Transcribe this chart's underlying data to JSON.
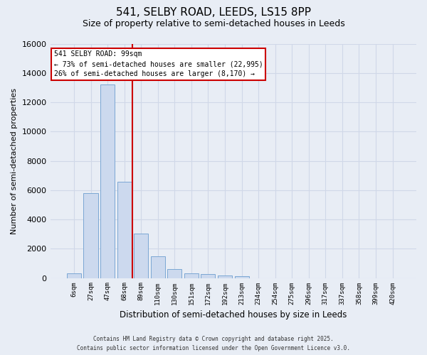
{
  "title_line1": "541, SELBY ROAD, LEEDS, LS15 8PP",
  "title_line2": "Size of property relative to semi-detached houses in Leeds",
  "xlabel": "Distribution of semi-detached houses by size in Leeds",
  "ylabel": "Number of semi-detached properties",
  "categories": [
    "6sqm",
    "27sqm",
    "47sqm",
    "68sqm",
    "89sqm",
    "110sqm",
    "130sqm",
    "151sqm",
    "172sqm",
    "192sqm",
    "213sqm",
    "234sqm",
    "254sqm",
    "275sqm",
    "296sqm",
    "317sqm",
    "337sqm",
    "358sqm",
    "399sqm",
    "420sqm"
  ],
  "values": [
    300,
    5800,
    13200,
    6550,
    3050,
    1500,
    600,
    320,
    270,
    150,
    120,
    0,
    0,
    0,
    0,
    0,
    0,
    0,
    0,
    0
  ],
  "bar_color": "#ccd9ee",
  "bar_edge_color": "#7ba7d4",
  "annotation_title": "541 SELBY ROAD: 99sqm",
  "annotation_line2": "← 73% of semi-detached houses are smaller (22,995)",
  "annotation_line3": "26% of semi-detached houses are larger (8,170) →",
  "vline_color": "#cc0000",
  "annotation_box_edge_color": "#cc0000",
  "vline_x": 3.5,
  "ylim_max": 16000,
  "yticks": [
    0,
    2000,
    4000,
    6000,
    8000,
    10000,
    12000,
    14000,
    16000
  ],
  "bg_color": "#e8edf5",
  "grid_color": "#d0d8e8",
  "footer_line1": "Contains HM Land Registry data © Crown copyright and database right 2025.",
  "footer_line2": "Contains public sector information licensed under the Open Government Licence v3.0."
}
